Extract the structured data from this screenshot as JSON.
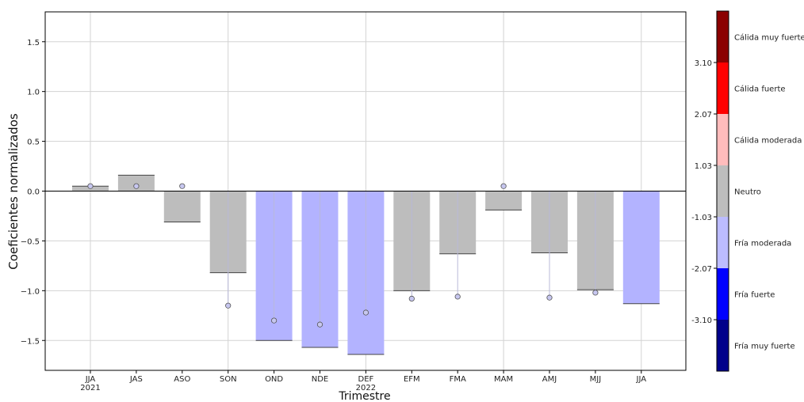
{
  "chart_data": {
    "type": "bar",
    "xlabel": "Trimestre",
    "ylabel": "Coeficientes normalizados",
    "ylim": [
      -1.8,
      1.8
    ],
    "yticks": [
      -1.5,
      -1.0,
      -0.5,
      0.0,
      0.5,
      1.0,
      1.5
    ],
    "ytick_labels": [
      "−1.5",
      "−1.0",
      "−0.5",
      "0.0",
      "0.5",
      "1.0",
      "1.5"
    ],
    "grid": true,
    "categories": [
      "JJA",
      "JAS",
      "ASO",
      "SON",
      "OND",
      "NDE",
      "DEF",
      "EFM",
      "FMA",
      "MAM",
      "AMJ",
      "MJJ",
      "JJA"
    ],
    "sublabels": [
      "2021",
      "",
      "",
      "",
      "",
      "",
      "2022",
      "",
      "",
      "",
      "",
      "",
      ""
    ],
    "values": [
      0.05,
      0.16,
      -0.31,
      -0.82,
      -1.5,
      -1.57,
      -1.64,
      -1.0,
      -0.63,
      -0.19,
      -0.62,
      -0.99,
      -1.13
    ],
    "bar_colors": [
      "#bdbdbd",
      "#bdbdbd",
      "#bdbdbd",
      "#bdbdbd",
      "#b3b3ff",
      "#b3b3ff",
      "#b3b3ff",
      "#bdbdbd",
      "#bdbdbd",
      "#bdbdbd",
      "#bdbdbd",
      "#bdbdbd",
      "#b3b3ff"
    ],
    "points": [
      0.05,
      0.05,
      0.05,
      -1.15,
      -1.3,
      -1.34,
      -1.22,
      -1.08,
      -1.06,
      0.05,
      -1.07,
      -1.02,
      null
    ],
    "point_color": "#c7c7f0",
    "colorbar": {
      "ticks": [
        "3.10",
        "2.07",
        "1.03",
        "-1.03",
        "-2.07",
        "-3.10"
      ],
      "categories": [
        {
          "label": "Cálida muy fuerte",
          "color": "#8b0000"
        },
        {
          "label": "Cálida fuerte",
          "color": "#ff0000"
        },
        {
          "label": "Cálida moderada",
          "color": "#ffbcbc"
        },
        {
          "label": "Neutro",
          "color": "#bdbdbd"
        },
        {
          "label": "Fría moderada",
          "color": "#bcbcff"
        },
        {
          "label": "Fría fuerte",
          "color": "#0000ff"
        },
        {
          "label": "Fría muy fuerte",
          "color": "#00008b"
        }
      ]
    }
  }
}
